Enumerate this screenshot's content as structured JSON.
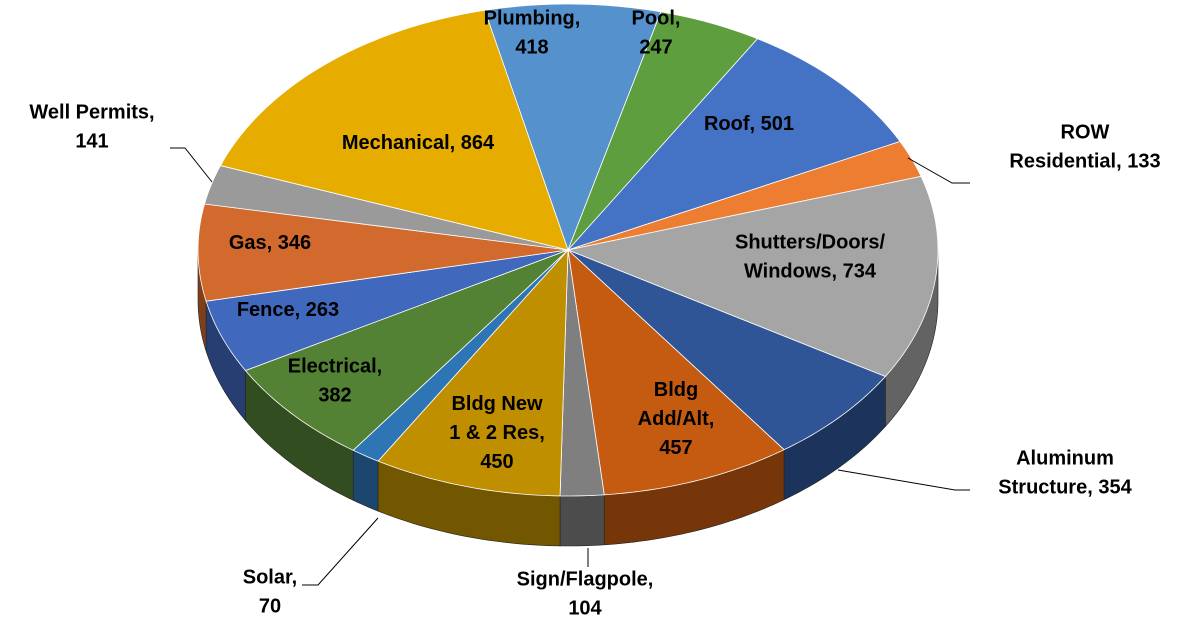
{
  "chart_data": {
    "type": "pie3d",
    "values": [
      418,
      247,
      501,
      133,
      734,
      354,
      457,
      104,
      450,
      70,
      382,
      263,
      346,
      141,
      864
    ],
    "value_labels": [
      "Plumbing, 418",
      "Pool, 247",
      "Roof, 501",
      "ROW Residential, 133",
      "Shutters/Doors/Windows, 734",
      "Aluminum Structure, 354",
      "Bldg Add/Alt, 457",
      "Sign/Flagpole, 104",
      "Bldg New 1 & 2 Res, 450",
      "Solar, 70",
      "Electrical, 382",
      "Fence, 263",
      "Gas, 346",
      "Well Permits, 141",
      "Mechanical, 864"
    ],
    "colors": [
      "#5591cc",
      "#5e9e3e",
      "#4472c4",
      "#ed7d31",
      "#a5a5a5",
      "#2f5597",
      "#c55a11",
      "#7f7f7f",
      "#bf8f00",
      "#2e75b6",
      "#548235",
      "#4068bd",
      "#d2692d",
      "#9a9a9a",
      "#e6ac00"
    ]
  }
}
